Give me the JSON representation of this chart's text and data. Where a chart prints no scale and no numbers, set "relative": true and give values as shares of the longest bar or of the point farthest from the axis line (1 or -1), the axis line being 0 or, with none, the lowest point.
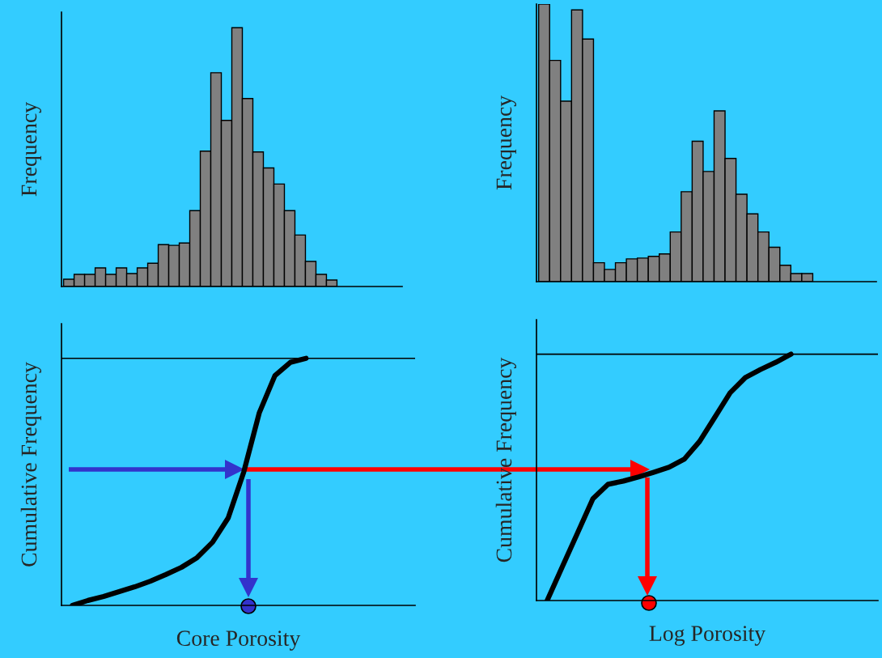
{
  "chart_data": [
    {
      "type": "bar",
      "relative": true,
      "ylabel": "Frequency",
      "tick_labels": false,
      "color": "#808080",
      "categories": [
        null,
        null,
        null,
        null,
        null,
        null,
        null,
        null,
        null,
        null,
        null,
        null,
        null,
        null,
        null,
        null,
        null,
        null,
        null,
        null,
        null,
        null,
        null,
        null,
        null,
        null
      ],
      "values": [
        0.028,
        0.047,
        0.047,
        0.072,
        0.047,
        0.072,
        0.05,
        0.072,
        0.09,
        0.162,
        0.159,
        0.168,
        0.293,
        0.523,
        0.826,
        0.642,
        1,
        0.726,
        0.52,
        0.458,
        0.396,
        0.293,
        0.199,
        0.097,
        0.047,
        0.025
      ]
    },
    {
      "type": "bar",
      "relative": true,
      "ylabel": "Frequency",
      "tick_labels": false,
      "color": "#808080",
      "categories": [
        null,
        null,
        null,
        null,
        null,
        null,
        null,
        null,
        null,
        null,
        null,
        null,
        null,
        null,
        null,
        null,
        null,
        null,
        null,
        null,
        null,
        null,
        null,
        null,
        null
      ],
      "values": [
        1,
        0.797,
        0.65,
        0.979,
        0.874,
        0.068,
        0.044,
        0.068,
        0.082,
        0.085,
        0.091,
        0.1,
        0.179,
        0.324,
        0.506,
        0.397,
        0.615,
        0.444,
        0.315,
        0.244,
        0.179,
        0.124,
        0.059,
        0.029,
        0.029
      ]
    },
    {
      "type": "line",
      "relative": true,
      "ylabel": "Cumulative Frequency",
      "xlabel": "Core Porosity",
      "tick_labels": false,
      "color": "#000000",
      "ref_lines": [
        {
          "axis": "y",
          "value": 1,
          "color": "#000000"
        }
      ],
      "categories": [
        null,
        null,
        null,
        null,
        null,
        null,
        null,
        null,
        null,
        null,
        null,
        null,
        null,
        null,
        null,
        null
      ],
      "values": [
        0,
        0.02,
        0.036,
        0.056,
        0.075,
        0.098,
        0.125,
        0.154,
        0.193,
        0.256,
        0.354,
        0.54,
        0.78,
        0.93,
        0.984,
        1
      ]
    },
    {
      "type": "line",
      "relative": true,
      "ylabel": "Cumulative Frequency",
      "xlabel": "Log Porosity",
      "tick_labels": false,
      "color": "#000000",
      "ref_lines": [
        {
          "axis": "y",
          "value": 1,
          "color": "#000000"
        }
      ],
      "categories": [
        null,
        null,
        null,
        null,
        null,
        null,
        null,
        null,
        null,
        null,
        null,
        null,
        null,
        null,
        null,
        null,
        null
      ],
      "values": [
        0,
        0.138,
        0.275,
        0.413,
        0.472,
        0.485,
        0.502,
        0.521,
        0.541,
        0.574,
        0.646,
        0.744,
        0.843,
        0.905,
        0.938,
        0.967,
        1
      ]
    }
  ]
}
